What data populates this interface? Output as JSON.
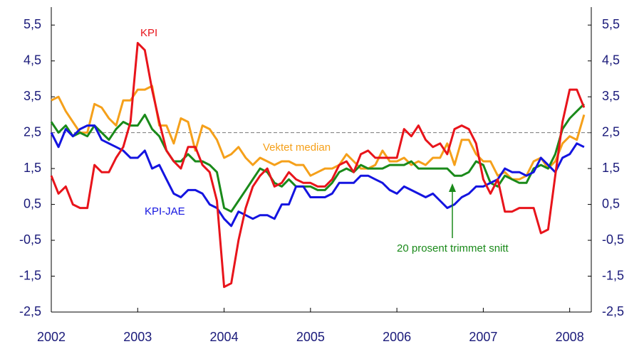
{
  "chart_data": {
    "type": "line",
    "x": [
      2002,
      2002.083,
      2002.167,
      2002.25,
      2002.333,
      2002.417,
      2002.5,
      2002.583,
      2002.667,
      2002.75,
      2002.833,
      2002.917,
      2003,
      2003.083,
      2003.167,
      2003.25,
      2003.333,
      2003.417,
      2003.5,
      2003.583,
      2003.667,
      2003.75,
      2003.833,
      2003.917,
      2004,
      2004.083,
      2004.167,
      2004.25,
      2004.333,
      2004.417,
      2004.5,
      2004.583,
      2004.667,
      2004.75,
      2004.833,
      2004.917,
      2005,
      2005.083,
      2005.167,
      2005.25,
      2005.333,
      2005.417,
      2005.5,
      2005.583,
      2005.667,
      2005.75,
      2005.833,
      2005.917,
      2006,
      2006.083,
      2006.167,
      2006.25,
      2006.333,
      2006.417,
      2006.5,
      2006.583,
      2006.667,
      2006.75,
      2006.833,
      2006.917,
      2007,
      2007.083,
      2007.167,
      2007.25,
      2007.333,
      2007.417,
      2007.5,
      2007.583,
      2007.667,
      2007.75,
      2007.833,
      2007.917,
      2008,
      2008.083,
      2008.167
    ],
    "series": [
      {
        "name": "Vektet median",
        "color": "#f5a01a",
        "values": [
          3.4,
          3.5,
          3.1,
          2.8,
          2.5,
          2.5,
          3.3,
          3.2,
          2.9,
          2.7,
          3.4,
          3.4,
          3.7,
          3.7,
          3.8,
          2.7,
          2.7,
          2.2,
          2.9,
          2.8,
          2.0,
          2.7,
          2.6,
          2.3,
          1.8,
          1.9,
          2.1,
          1.8,
          1.6,
          1.8,
          1.7,
          1.6,
          1.7,
          1.7,
          1.6,
          1.6,
          1.3,
          1.4,
          1.5,
          1.5,
          1.6,
          1.9,
          1.7,
          1.5,
          1.5,
          1.6,
          2.0,
          1.7,
          1.7,
          1.8,
          1.6,
          1.7,
          1.6,
          1.8,
          1.8,
          2.2,
          1.6,
          2.3,
          2.3,
          1.9,
          1.7,
          1.7,
          1.3,
          1.4,
          1.2,
          1.2,
          1.3,
          1.7,
          1.8,
          1.5,
          1.7,
          2.2,
          2.4,
          2.3,
          3.0
        ]
      },
      {
        "name": "20 prosent trimmet snitt",
        "color": "#1a8a1a",
        "values": [
          2.8,
          2.5,
          2.7,
          2.4,
          2.5,
          2.4,
          2.7,
          2.5,
          2.3,
          2.6,
          2.8,
          2.7,
          2.7,
          3.0,
          2.6,
          2.4,
          2.0,
          1.7,
          1.7,
          1.9,
          1.7,
          1.7,
          1.6,
          1.4,
          0.4,
          0.3,
          0.6,
          0.9,
          1.2,
          1.5,
          1.4,
          1.1,
          1.0,
          1.2,
          1.0,
          1.0,
          1.0,
          0.9,
          0.9,
          1.1,
          1.4,
          1.5,
          1.4,
          1.6,
          1.5,
          1.5,
          1.5,
          1.6,
          1.6,
          1.6,
          1.7,
          1.5,
          1.5,
          1.5,
          1.5,
          1.5,
          1.3,
          1.3,
          1.4,
          1.7,
          1.6,
          1.1,
          1.0,
          1.3,
          1.2,
          1.1,
          1.1,
          1.5,
          1.6,
          1.5,
          1.9,
          2.6,
          2.9,
          3.1,
          3.3
        ]
      },
      {
        "name": "KPI-JAE",
        "color": "#1414e0",
        "values": [
          2.5,
          2.1,
          2.6,
          2.4,
          2.6,
          2.7,
          2.7,
          2.3,
          2.2,
          2.1,
          2.0,
          1.8,
          1.8,
          2.0,
          1.5,
          1.6,
          1.2,
          0.8,
          0.7,
          0.9,
          0.9,
          0.8,
          0.5,
          0.4,
          0.1,
          -0.1,
          0.3,
          0.2,
          0.1,
          0.2,
          0.2,
          0.1,
          0.5,
          0.5,
          1.0,
          1.0,
          0.7,
          0.7,
          0.7,
          0.8,
          1.1,
          1.1,
          1.1,
          1.3,
          1.3,
          1.2,
          1.1,
          0.9,
          0.8,
          1.0,
          0.9,
          0.8,
          0.7,
          0.8,
          0.6,
          0.4,
          0.5,
          0.7,
          0.8,
          1.0,
          1.0,
          1.1,
          1.2,
          1.5,
          1.4,
          1.4,
          1.3,
          1.4,
          1.8,
          1.6,
          1.4,
          1.8,
          1.9,
          2.2,
          2.1
        ]
      },
      {
        "name": "KPI",
        "color": "#e8141b",
        "values": [
          1.3,
          0.8,
          1.0,
          0.5,
          0.4,
          0.4,
          1.6,
          1.4,
          1.4,
          1.8,
          2.1,
          2.8,
          5.0,
          4.8,
          3.7,
          2.8,
          2.0,
          1.7,
          1.5,
          2.1,
          2.1,
          1.6,
          1.4,
          0.6,
          -1.8,
          -1.7,
          -0.5,
          0.4,
          1.0,
          1.3,
          1.5,
          1.0,
          1.1,
          1.4,
          1.2,
          1.1,
          1.1,
          1.0,
          1.0,
          1.2,
          1.6,
          1.7,
          1.4,
          1.9,
          2.0,
          1.8,
          1.8,
          1.8,
          1.8,
          2.6,
          2.4,
          2.7,
          2.3,
          2.1,
          2.2,
          1.9,
          2.6,
          2.7,
          2.6,
          2.2,
          1.2,
          0.8,
          1.2,
          0.3,
          0.3,
          0.4,
          0.4,
          0.4,
          -0.3,
          -0.2,
          1.3,
          2.8,
          3.7,
          3.7,
          3.2
        ]
      }
    ],
    "xlim": [
      2002,
      2008.25
    ],
    "xticks": [
      2002,
      2003,
      2004,
      2005,
      2006,
      2007,
      2008
    ],
    "ylim": [
      -2.5,
      6
    ],
    "yticks": [
      {
        "value": -2.5,
        "label": "-2,5"
      },
      {
        "value": -1.5,
        "label": "-1,5"
      },
      {
        "value": -0.5,
        "label": "-0,5"
      },
      {
        "value": 0.5,
        "label": "0,5"
      },
      {
        "value": 1.5,
        "label": "1,5"
      },
      {
        "value": 2.5,
        "label": "2,5"
      },
      {
        "value": 3.5,
        "label": "3,5"
      },
      {
        "value": 4.5,
        "label": "4,5"
      },
      {
        "value": 5.5,
        "label": "5,5"
      }
    ],
    "reference_line": 2.5
  }
}
